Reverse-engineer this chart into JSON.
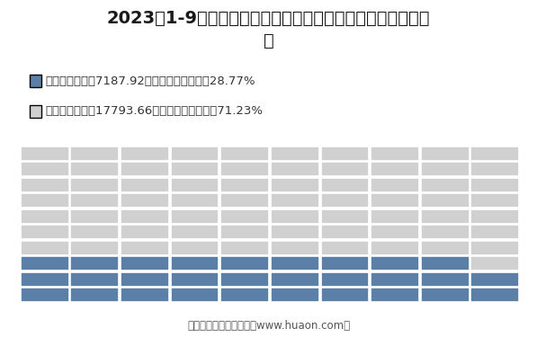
{
  "title": "2023年1-9月四川国有及国有控股建筑业企业签订合同金额结\n构",
  "legend_items": [
    {
      "label": "本年新签合同额7187.92亿元，占签订合同的28.77%",
      "color": "#5b7fa6"
    },
    {
      "label": "上年结转合同额17793.66亿元，占签订合同的71.23%",
      "color": "#d0d0d0"
    }
  ],
  "blue_color": "#5b7fa6",
  "gray_color": "#d0d0d0",
  "blue_pct": 28.77,
  "gray_pct": 71.23,
  "n_cols": 10,
  "n_rows": 10,
  "blue_count": 29,
  "footer": "制图：华经产业研究院（www.huaon.com）",
  "background_color": "#ffffff",
  "title_fontsize": 14,
  "legend_fontsize": 9.5,
  "footer_fontsize": 8.5
}
